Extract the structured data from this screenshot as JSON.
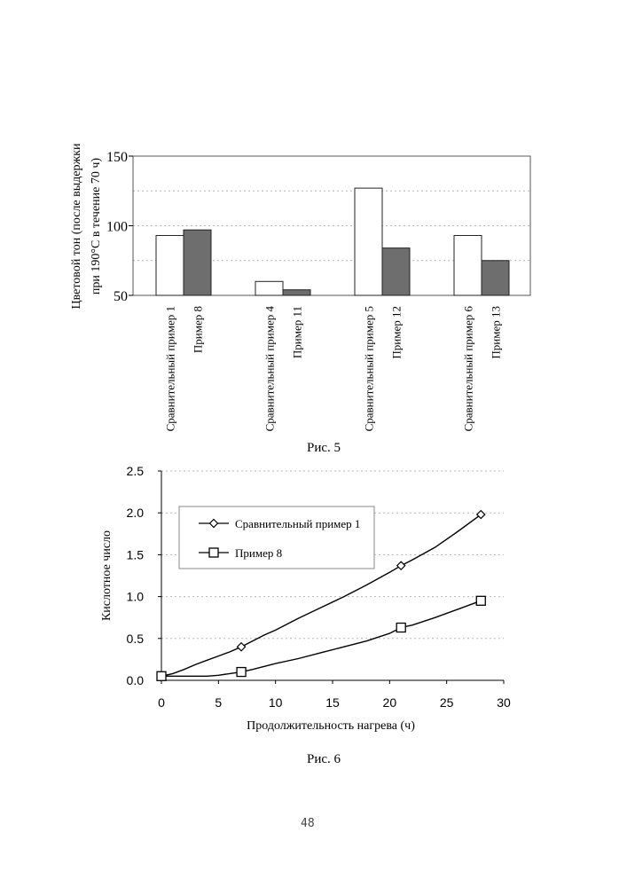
{
  "page_number": "48",
  "chart_data": [
    {
      "type": "bar",
      "caption": "Рис. 5",
      "ylabel": "Цветовой тон (после выдержки при 190°С в течение 70 ч)",
      "ylabel_lines": [
        "Цветовой тон (после выдержки",
        "при 190°С в течение 70 ч)"
      ],
      "ylim": [
        50,
        150
      ],
      "yticks": [
        50,
        100,
        150
      ],
      "grid": true,
      "groups": [
        {
          "bars": [
            {
              "label": "Сравнительный пример 1",
              "value": 93,
              "fill": "#ffffff"
            },
            {
              "label": "Пример 8",
              "value": 97,
              "fill": "#6e6e6e"
            }
          ]
        },
        {
          "bars": [
            {
              "label": "Сравнительный пример 4",
              "value": 60,
              "fill": "#ffffff"
            },
            {
              "label": "Пример 11",
              "value": 54,
              "fill": "#6e6e6e"
            }
          ]
        },
        {
          "bars": [
            {
              "label": "Сравнительный пример 5",
              "value": 127,
              "fill": "#ffffff"
            },
            {
              "label": "Пример 12",
              "value": 84,
              "fill": "#6e6e6e"
            }
          ]
        },
        {
          "bars": [
            {
              "label": "Сравнительный пример 6",
              "value": 93,
              "fill": "#ffffff"
            },
            {
              "label": "Пример 13",
              "value": 75,
              "fill": "#6e6e6e"
            }
          ]
        }
      ]
    },
    {
      "type": "line",
      "caption": "Рис. 6",
      "xlabel": "Продолжительность нагрева (ч)",
      "ylabel": "Кислотное число",
      "xlim": [
        0,
        30
      ],
      "ylim": [
        0,
        2.5
      ],
      "xticks": [
        0,
        5,
        10,
        15,
        20,
        25,
        30
      ],
      "yticks": [
        "0.0",
        "0.5",
        "1.0",
        "1.5",
        "2.0",
        "2.5"
      ],
      "grid": true,
      "legend_position": "top-left inside",
      "series": [
        {
          "name": "Сравнительный пример 1",
          "marker": "diamond",
          "points": [
            [
              0,
              0.05
            ],
            [
              7,
              0.4
            ],
            [
              21,
              1.37
            ],
            [
              28,
              1.98
            ]
          ],
          "curve": [
            [
              0,
              0.05
            ],
            [
              1,
              0.08
            ],
            [
              2,
              0.13
            ],
            [
              3,
              0.19
            ],
            [
              4,
              0.24
            ],
            [
              5,
              0.29
            ],
            [
              6,
              0.34
            ],
            [
              7,
              0.4
            ],
            [
              8,
              0.47
            ],
            [
              9,
              0.54
            ],
            [
              10,
              0.6
            ],
            [
              12,
              0.74
            ],
            [
              14,
              0.87
            ],
            [
              16,
              1.0
            ],
            [
              18,
              1.14
            ],
            [
              20,
              1.29
            ],
            [
              21,
              1.37
            ],
            [
              22,
              1.44
            ],
            [
              24,
              1.59
            ],
            [
              26,
              1.78
            ],
            [
              28,
              1.98
            ]
          ]
        },
        {
          "name": "Пример 8",
          "marker": "square",
          "points": [
            [
              0,
              0.05
            ],
            [
              7,
              0.1
            ],
            [
              21,
              0.63
            ],
            [
              28,
              0.95
            ]
          ],
          "curve": [
            [
              0,
              0.05
            ],
            [
              2,
              0.05
            ],
            [
              4,
              0.05
            ],
            [
              5,
              0.06
            ],
            [
              6,
              0.08
            ],
            [
              7,
              0.1
            ],
            [
              8,
              0.13
            ],
            [
              10,
              0.2
            ],
            [
              12,
              0.26
            ],
            [
              14,
              0.33
            ],
            [
              16,
              0.4
            ],
            [
              18,
              0.47
            ],
            [
              20,
              0.56
            ],
            [
              21,
              0.63
            ],
            [
              22,
              0.66
            ],
            [
              24,
              0.75
            ],
            [
              26,
              0.85
            ],
            [
              28,
              0.95
            ]
          ]
        }
      ]
    }
  ]
}
